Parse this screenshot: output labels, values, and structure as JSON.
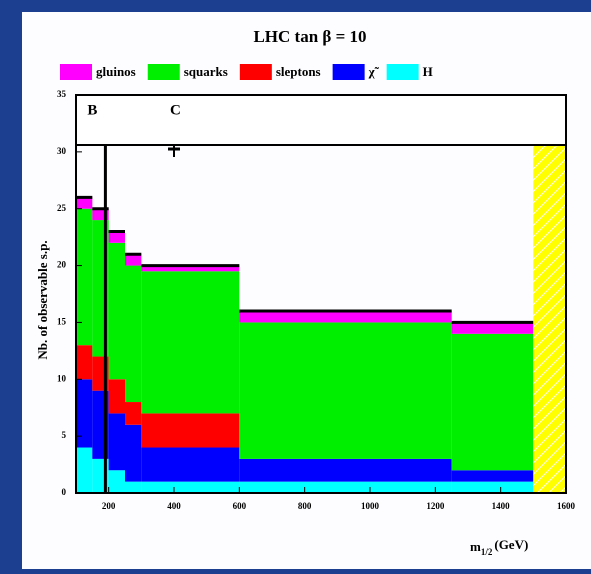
{
  "chart_data": {
    "type": "histogram",
    "stacked": true,
    "title": "LHC tan β = 10",
    "y_label": "Nb. of observable s.p.",
    "x_label": {
      "symbol": "m",
      "subscript": "1/2",
      "unit": "(GeV)"
    },
    "bins": [
      100,
      150,
      200,
      250,
      300,
      600,
      1250,
      1500
    ],
    "series": [
      {
        "name": "gluinos",
        "color": "#ff00ff",
        "values": [
          1,
          1,
          1,
          1,
          0.5,
          1,
          1
        ]
      },
      {
        "name": "squarks",
        "color": "#00ee00",
        "values": [
          12,
          12,
          12,
          12,
          12.5,
          12,
          12
        ]
      },
      {
        "name": "sleptons",
        "color": "#ff0000",
        "values": [
          3,
          3,
          3,
          2,
          3,
          0,
          0
        ]
      },
      {
        "name": "χ̃",
        "color": "#0000ff",
        "values": [
          6,
          6,
          5,
          5,
          3,
          2,
          1
        ]
      },
      {
        "name": "H",
        "color": "#00ffff",
        "values": [
          4,
          3,
          2,
          1,
          1,
          1,
          1
        ]
      }
    ],
    "markers": [
      {
        "label": "B",
        "x": 190
      },
      {
        "label": "C",
        "x": 400
      }
    ],
    "excluded": [
      1500,
      1600
    ],
    "xlim": [
      100,
      1600
    ],
    "xticks": [
      200,
      400,
      600,
      800,
      1000,
      1200,
      1400,
      1600
    ],
    "ylim": [
      0,
      35
    ],
    "yticks": [
      0,
      5,
      10,
      15,
      20,
      25,
      30,
      35
    ]
  }
}
